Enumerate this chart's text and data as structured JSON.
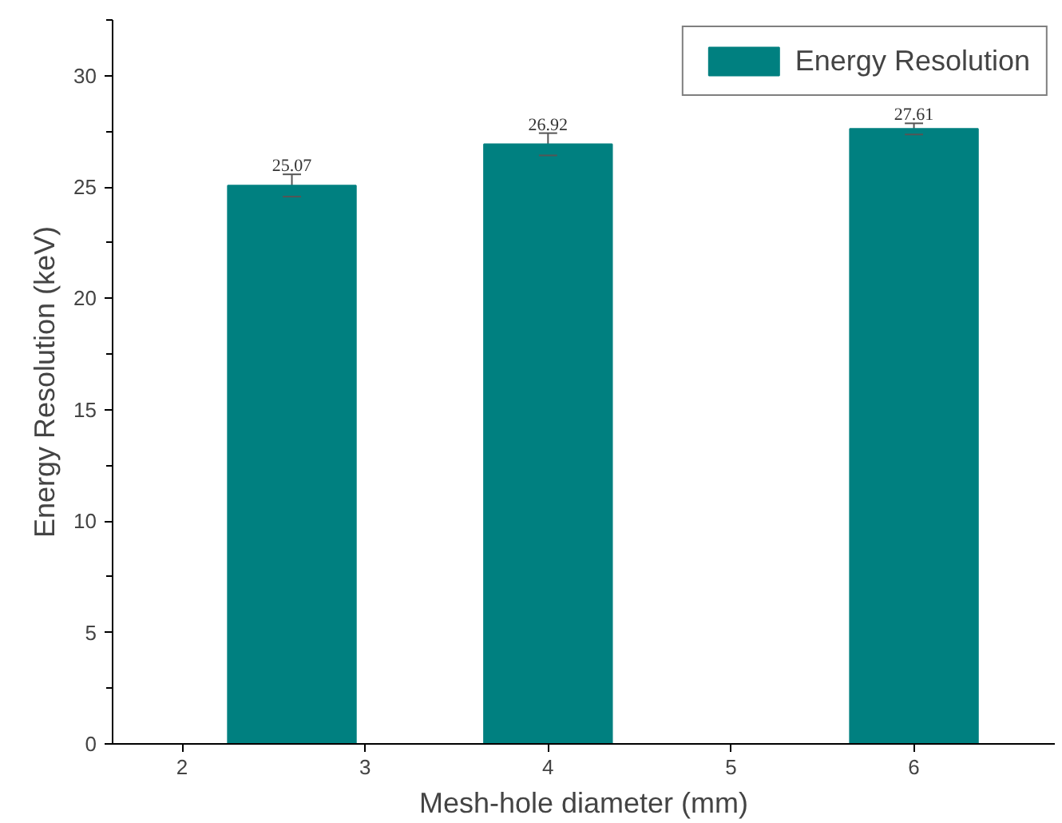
{
  "chart_data": {
    "type": "bar",
    "xlabel": "Mesh-hole diameter (mm)",
    "ylabel": "Energy Resolution (keV)",
    "x": [
      2.6,
      4,
      6
    ],
    "series": [
      {
        "name": "Energy Resolution",
        "color": "#008080",
        "values": [
          25.07,
          26.92,
          27.61
        ],
        "errors": [
          0.5,
          0.5,
          0.25
        ]
      }
    ],
    "data_labels": true,
    "xlim": [
      1.62,
      6.77
    ],
    "xticks": [
      2,
      3,
      4,
      5,
      6
    ],
    "ylim": [
      0,
      32.5
    ],
    "yticks": [
      0,
      5,
      10,
      15,
      20,
      25,
      30
    ],
    "grid": false,
    "legend": "top right"
  }
}
